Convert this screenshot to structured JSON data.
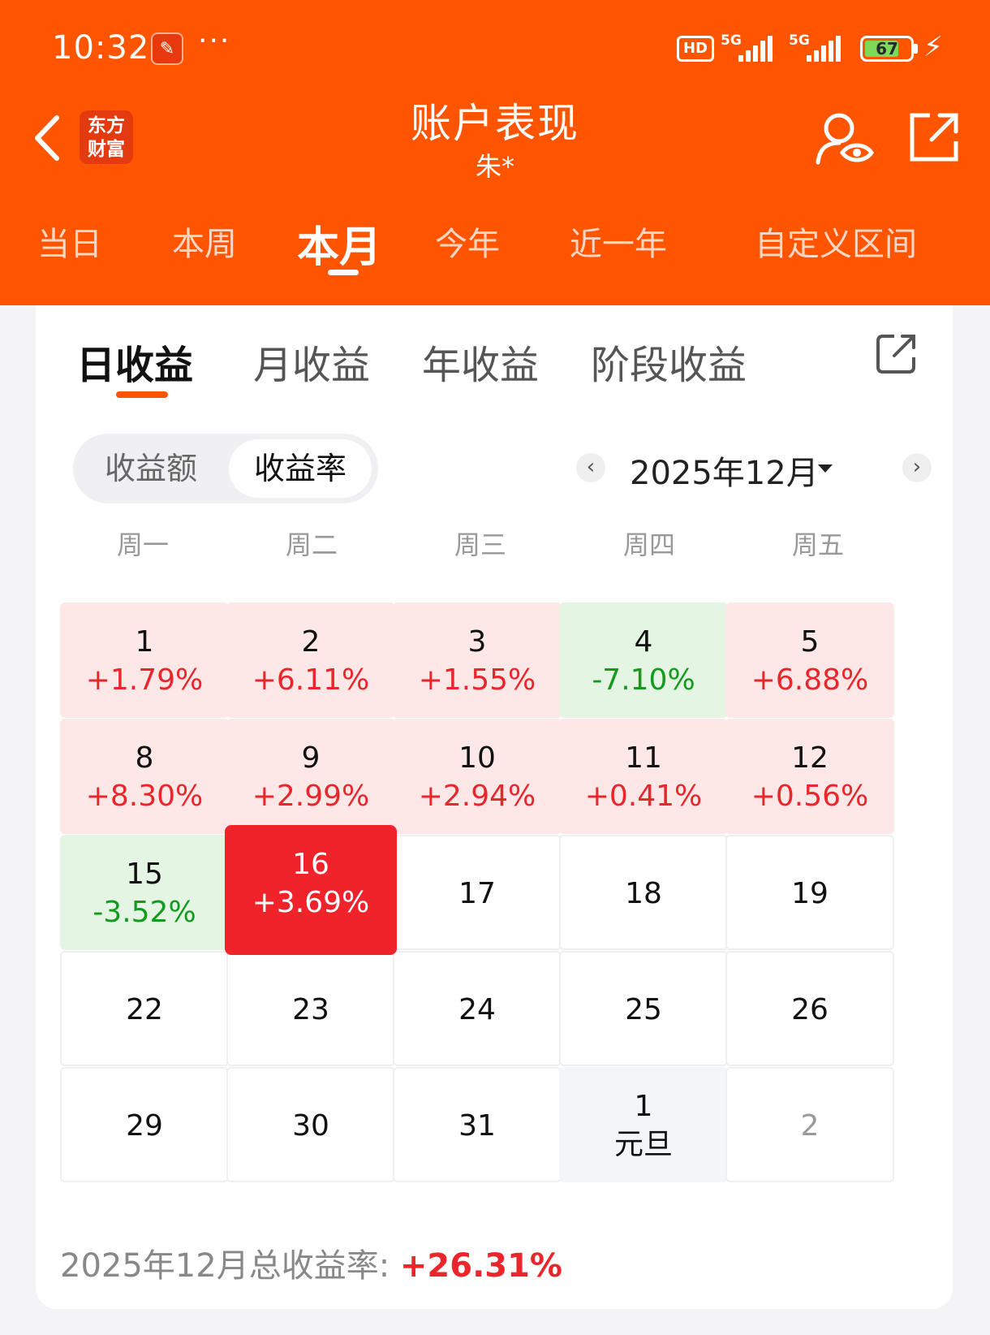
{
  "status_bar": {
    "time": "10:32",
    "hd": "HD",
    "sim1": "5G",
    "sim2": "5G",
    "battery": "67",
    "battery_level": 0.67,
    "icons": [
      "app-notification-icon",
      "more-dots-icon",
      "signal-icon",
      "battery-icon",
      "charging-icon"
    ]
  },
  "header": {
    "logo_line1": "东方",
    "logo_line2": "财富",
    "title": "账户表现",
    "subtitle": "朱*"
  },
  "period_tabs": [
    "当日",
    "本周",
    "本月",
    "今年",
    "近一年",
    "自定义区间"
  ],
  "active_period": "本月",
  "return_tabs": [
    "日收益",
    "月收益",
    "年收益",
    "阶段收益"
  ],
  "active_return_tab": "日收益",
  "segment": {
    "options": [
      "收益额",
      "收益率"
    ],
    "selected": "收益率"
  },
  "month_nav": {
    "label": "2025年12月",
    "prev": "‹",
    "next": "›"
  },
  "weekdays": [
    "周一",
    "周二",
    "周三",
    "周四",
    "周五"
  ],
  "calendar": [
    [
      {
        "day": "1",
        "value": "+1.79%",
        "state": "up"
      },
      {
        "day": "2",
        "value": "+6.11%",
        "state": "up"
      },
      {
        "day": "3",
        "value": "+1.55%",
        "state": "up"
      },
      {
        "day": "4",
        "value": "-7.10%",
        "state": "down"
      },
      {
        "day": "5",
        "value": "+6.88%",
        "state": "up"
      }
    ],
    [
      {
        "day": "8",
        "value": "+8.30%",
        "state": "up"
      },
      {
        "day": "9",
        "value": "+2.99%",
        "state": "up"
      },
      {
        "day": "10",
        "value": "+2.94%",
        "state": "up"
      },
      {
        "day": "11",
        "value": "+0.41%",
        "state": "up"
      },
      {
        "day": "12",
        "value": "+0.56%",
        "state": "up"
      }
    ],
    [
      {
        "day": "15",
        "value": "-3.52%",
        "state": "down"
      },
      {
        "day": "16",
        "value": "+3.69%",
        "state": "selected"
      },
      {
        "day": "17",
        "value": "",
        "state": "none"
      },
      {
        "day": "18",
        "value": "",
        "state": "none"
      },
      {
        "day": "19",
        "value": "",
        "state": "none"
      }
    ],
    [
      {
        "day": "22",
        "value": "",
        "state": "none"
      },
      {
        "day": "23",
        "value": "",
        "state": "none"
      },
      {
        "day": "24",
        "value": "",
        "state": "none"
      },
      {
        "day": "25",
        "value": "",
        "state": "none"
      },
      {
        "day": "26",
        "value": "",
        "state": "none"
      }
    ],
    [
      {
        "day": "29",
        "value": "",
        "state": "none"
      },
      {
        "day": "30",
        "value": "",
        "state": "none"
      },
      {
        "day": "31",
        "value": "",
        "state": "none"
      },
      {
        "day": "1",
        "value": "元旦",
        "state": "holiday"
      },
      {
        "day": "2",
        "value": "",
        "state": "other-month"
      }
    ]
  ],
  "summary": {
    "label": "2025年12月总收益率: ",
    "value": "+26.31%"
  },
  "colors": {
    "brand": "#ff5500",
    "up": "#e8262b",
    "down": "#139a1f",
    "selected": "#f0222a"
  }
}
